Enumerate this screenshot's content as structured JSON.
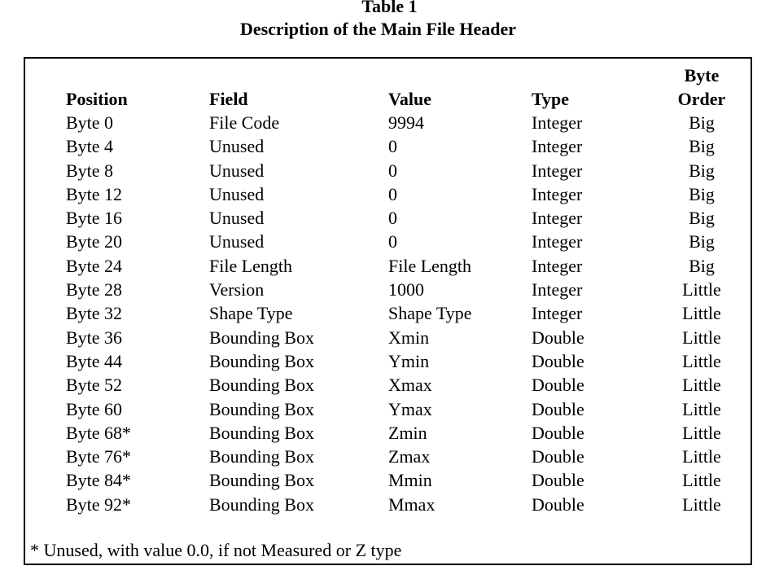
{
  "caption": {
    "title": "Table 1",
    "subtitle": "Description of the Main File Header"
  },
  "table": {
    "headers": {
      "position": "Position",
      "field": "Field",
      "value": "Value",
      "type": "Type",
      "byte_order_line1": "Byte",
      "byte_order_line2": "Order"
    },
    "rows": [
      [
        "Byte 0",
        "File Code",
        "9994",
        "Integer",
        "Big"
      ],
      [
        "Byte 4",
        "Unused",
        "0",
        "Integer",
        "Big"
      ],
      [
        "Byte 8",
        "Unused",
        "0",
        "Integer",
        "Big"
      ],
      [
        "Byte 12",
        "Unused",
        "0",
        "Integer",
        "Big"
      ],
      [
        "Byte 16",
        "Unused",
        "0",
        "Integer",
        "Big"
      ],
      [
        "Byte 20",
        "Unused",
        "0",
        "Integer",
        "Big"
      ],
      [
        "Byte 24",
        "File Length",
        "File Length",
        "Integer",
        "Big"
      ],
      [
        "Byte 28",
        "Version",
        "1000",
        "Integer",
        "Little"
      ],
      [
        "Byte 32",
        "Shape Type",
        "Shape Type",
        "Integer",
        "Little"
      ],
      [
        "Byte 36",
        "Bounding Box",
        "Xmin",
        "Double",
        "Little"
      ],
      [
        "Byte 44",
        "Bounding Box",
        "Ymin",
        "Double",
        "Little"
      ],
      [
        "Byte 52",
        "Bounding Box",
        "Xmax",
        "Double",
        "Little"
      ],
      [
        "Byte 60",
        "Bounding Box",
        "Ymax",
        "Double",
        "Little"
      ],
      [
        "Byte 68*",
        "Bounding Box",
        "Zmin",
        "Double",
        "Little"
      ],
      [
        "Byte 76*",
        "Bounding Box",
        "Zmax",
        "Double",
        "Little"
      ],
      [
        "Byte 84*",
        "Bounding Box",
        "Mmin",
        "Double",
        "Little"
      ],
      [
        "Byte 92*",
        "Bounding Box",
        "Mmax",
        "Double",
        "Little"
      ]
    ]
  },
  "footnote": "* Unused, with value 0.0, if not Measured or Z type"
}
